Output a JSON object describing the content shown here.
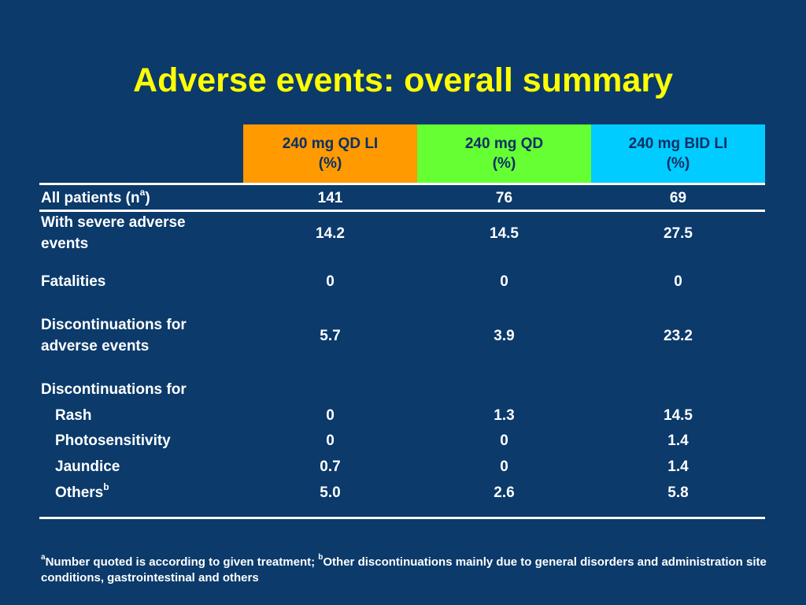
{
  "title": "Adverse events: overall summary",
  "colors": {
    "background": "#0b3a6b",
    "title": "#ffff00",
    "col1_header": "#ff9a00",
    "col2_header": "#66ff33",
    "col3_header": "#00ccff"
  },
  "columns": [
    {
      "name": "240 mg QD LI",
      "unit": "(%)"
    },
    {
      "name": "240 mg QD",
      "unit": "(%)"
    },
    {
      "name": "240 mg BID LI",
      "unit": "(%)"
    }
  ],
  "rows": {
    "all_patients": {
      "label": "All patients (n",
      "sup": "a",
      "label_end": ")",
      "values": [
        "141",
        "76",
        "69"
      ]
    },
    "severe": {
      "label_line1": "With severe adverse",
      "label_line2": "events",
      "values": [
        "14.2",
        "14.5",
        "27.5"
      ]
    },
    "fatalities": {
      "label": "Fatalities",
      "values": [
        "0",
        "0",
        "0"
      ]
    },
    "discontinuations_ae": {
      "label_line1": "Discontinuations for",
      "label_line2": "adverse events",
      "values": [
        "5.7",
        "3.9",
        "23.2"
      ]
    },
    "discontinuations_for": {
      "label": "Discontinuations for"
    },
    "rash": {
      "label": "Rash",
      "values": [
        "0",
        "1.3",
        "14.5"
      ]
    },
    "photosensitivity": {
      "label": "Photosensitivity",
      "values": [
        "0",
        "0",
        "1.4"
      ]
    },
    "jaundice": {
      "label": "Jaundice",
      "values": [
        "0.7",
        "0",
        "1.4"
      ]
    },
    "others": {
      "label": "Others",
      "sup": "b",
      "values": [
        "5.0",
        "2.6",
        "5.8"
      ]
    }
  },
  "footnote": {
    "sup_a": "a",
    "text_a": "Number quoted is according to given treatment; ",
    "sup_b": "b",
    "text_b": "Other discontinuations mainly due to general disorders and administration site conditions, gastrointestinal and others"
  }
}
